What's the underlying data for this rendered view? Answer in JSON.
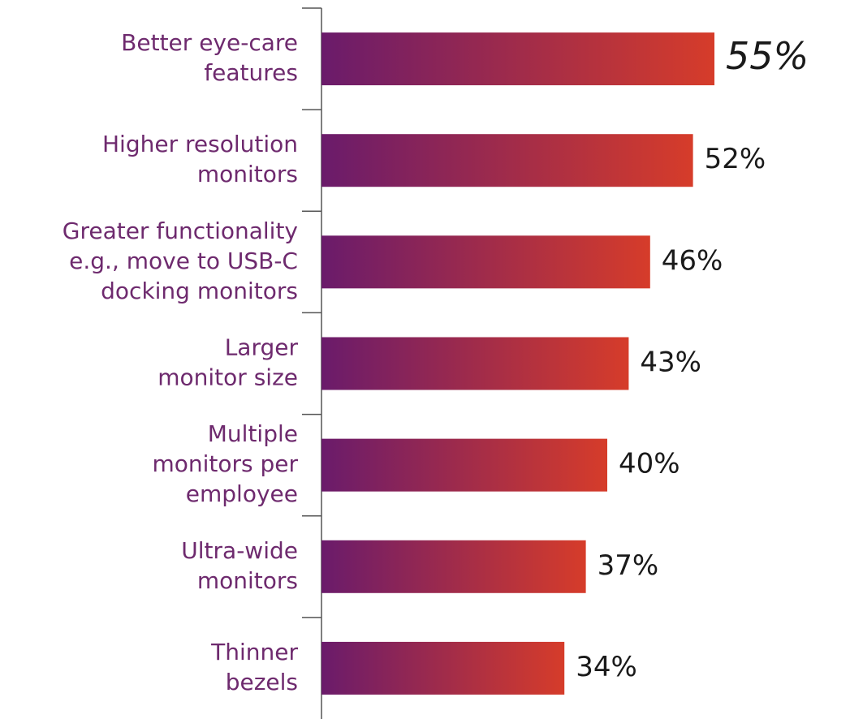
{
  "chart_data": {
    "type": "barh",
    "categories": [
      [
        "Better eye-care",
        "features"
      ],
      [
        "Higher resolution",
        "monitors"
      ],
      [
        "Greater functionality",
        "e.g., move to USB-C",
        "docking monitors"
      ],
      [
        "Larger",
        "monitor size"
      ],
      [
        "Multiple",
        "monitors per",
        "employee"
      ],
      [
        "Ultra-wide",
        "monitors"
      ],
      [
        "Thinner",
        "bezels"
      ]
    ],
    "values": [
      55,
      52,
      46,
      43,
      40,
      37,
      34
    ],
    "value_labels": [
      "55%",
      "52%",
      "46%",
      "43%",
      "40%",
      "37%",
      "34%"
    ],
    "colors": [
      "#6a1b6b",
      "#d63c2a"
    ],
    "xlim": [
      0,
      60
    ]
  }
}
